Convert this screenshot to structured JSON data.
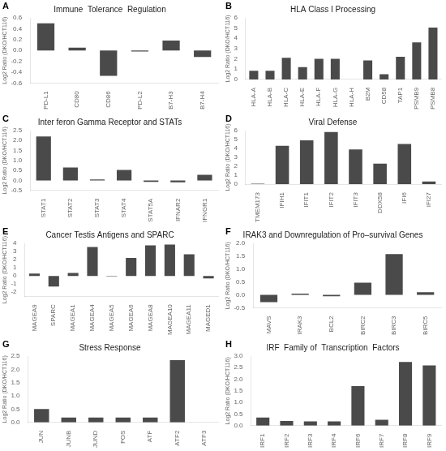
{
  "chart_data": [
    {
      "type": "bar",
      "annotation": "A",
      "title": "Immune  Tolerance  Regulation",
      "categories": [
        "PD-L1",
        "CD80",
        "CD86",
        "PD-L2",
        "B7-H3",
        "B7-H4"
      ],
      "values": [
        0.5,
        0.05,
        -0.47,
        -0.02,
        0.18,
        -0.12
      ],
      "color": "#4a4a4a",
      "ylabel": "Log2 Ratio (DKO/HCT116)",
      "ylim": [
        -0.6,
        0.6
      ],
      "yticks": [
        -0.6,
        -0.4,
        -0.2,
        {
          "value": 0,
          "label": "0.0"
        },
        0.2,
        0.4,
        0.6
      ],
      "grid": false
    },
    {
      "type": "bar",
      "annotation": "B",
      "title": "HLA Class I Processing",
      "categories": [
        "HLA-A",
        "HLA-B",
        "HLA-C",
        "HLA-E",
        "HLA-F",
        "HLA-G",
        "HLA-H",
        "B2M",
        "CD58",
        "TAP1",
        "PSMB9",
        "PSMB8"
      ],
      "values": [
        0.85,
        0.85,
        2.1,
        1.2,
        2.0,
        2.0,
        0.0,
        1.85,
        0.5,
        2.2,
        3.6,
        5.05
      ],
      "color": "#4a4a4a",
      "ylabel": "Log2 Ratio (DKO/HCT116)",
      "ylim": [
        0,
        6
      ],
      "yticks": [
        0,
        1,
        2,
        3,
        4,
        5,
        6
      ],
      "grid": false
    },
    {
      "type": "bar",
      "annotation": "C",
      "title": "Inter feron Gamma Receptor and STATs",
      "categories": [
        "STAT1",
        "STAT2",
        "STAT3",
        "STAT4",
        "STAT5A",
        "IFNAR2",
        "IFNGR1"
      ],
      "values": [
        2.2,
        0.65,
        0.05,
        0.52,
        -0.08,
        -0.1,
        0.28
      ],
      "color": "#4a4a4a",
      "ylabel": "Log2 Ratio (DKO/HCT116)",
      "ylim": [
        -0.5,
        2.5
      ],
      "yticks": [
        -0.5,
        {
          "value": 0,
          "label": "0.0"
        },
        0.5,
        {
          "value": 1,
          "label": "1.0"
        },
        1.5,
        {
          "value": 2,
          "label": "2.0"
        },
        2.5
      ],
      "grid": false
    },
    {
      "type": "bar",
      "annotation": "D",
      "title": "Viral Defense",
      "categories": [
        "TMEM173",
        "IFIH1",
        "IFIT1",
        "IFIT2",
        "IFIT3",
        "DDX58",
        "IFI6",
        "IFI27"
      ],
      "values": [
        0.05,
        4.3,
        4.9,
        5.85,
        3.9,
        2.3,
        4.5,
        0.3
      ],
      "color": "#4a4a4a",
      "ylabel": "Log2 Ratio (DKO/HCT116)",
      "ylim": [
        0,
        6
      ],
      "yticks": [
        0,
        1,
        2,
        3,
        4,
        5,
        6
      ],
      "grid": false
    },
    {
      "type": "bar",
      "annotation": "E",
      "title": "Cancer Testis Antigens and SPARC",
      "categories": [
        "MAGEA9",
        "SPARC",
        "MAGEA1",
        "MAGEA4",
        "MAGEA5",
        "MAGEA6",
        "MAGEA8",
        "MAGEA10",
        "MAGEA11",
        "MAGED1"
      ],
      "values": [
        0.28,
        -1.3,
        0.35,
        3.55,
        -0.05,
        2.2,
        3.75,
        3.85,
        2.65,
        -0.3
      ],
      "color": "#4a4a4a",
      "ylabel": "Log2 Ratio (DKO/HCT116)",
      "ylim": [
        -2.5,
        4.0
      ],
      "yticks": [
        -2,
        -1,
        0,
        1,
        2,
        3,
        4
      ],
      "grid": false
    },
    {
      "type": "bar",
      "annotation": "F",
      "title": "IRAK3 and Downregulation of Pro–survival Genes",
      "categories": [
        "MAVS",
        "IRAK3",
        "BCL2",
        "BIRC2",
        "BIRC3",
        "BIRC5"
      ],
      "values": [
        -0.28,
        0.05,
        -0.05,
        0.47,
        1.58,
        0.1
      ],
      "color": "#4a4a4a",
      "ylabel": "Log2 Ratio (DKO/HCT116)",
      "ylim": [
        -0.5,
        2.0
      ],
      "yticks": [
        -0.5,
        {
          "value": 0,
          "label": "0.0"
        },
        0.5,
        {
          "value": 1,
          "label": "1.0"
        },
        1.5,
        {
          "value": 2,
          "label": "2.0"
        }
      ],
      "grid": false
    },
    {
      "type": "bar",
      "annotation": "G",
      "title": "Stress Response",
      "categories": [
        "JUN",
        "JUNB",
        "JUND",
        "FOS",
        "ATF",
        "ATF2",
        "ATF3"
      ],
      "values": [
        0.5,
        0.18,
        0.18,
        0.18,
        0.18,
        2.35,
        0.0
      ],
      "color": "#4a4a4a",
      "ylabel": "Log2 Ratio (DKO/HCT116)",
      "ylim": [
        0,
        2.5
      ],
      "yticks": [
        {
          "value": 0,
          "label": "0.0"
        },
        0.5,
        {
          "value": 1,
          "label": "1.0"
        },
        1.5,
        {
          "value": 2,
          "label": "2.0"
        },
        2.5
      ],
      "grid": false
    },
    {
      "type": "bar",
      "annotation": "H",
      "title": "IRF  Family of  Transcription  Factors",
      "categories": [
        "IRF1",
        "IRF2",
        "IRF3",
        "IRF4",
        "IRF6",
        "IRF7",
        "IRF8",
        "IRF9"
      ],
      "values": [
        0.35,
        0.2,
        0.18,
        0.18,
        1.7,
        0.25,
        2.75,
        2.6
      ],
      "color": "#4a4a4a",
      "ylabel": "Log2 Ratio (DKO/HCT116)",
      "ylim": [
        0,
        3.0
      ],
      "yticks": [
        {
          "value": 0,
          "label": "0.0"
        },
        0.5,
        {
          "value": 1,
          "label": "1.0"
        },
        1.5,
        {
          "value": 2,
          "label": "2.0"
        },
        2.5,
        {
          "value": 3,
          "label": "3.0"
        }
      ],
      "grid": false
    }
  ]
}
